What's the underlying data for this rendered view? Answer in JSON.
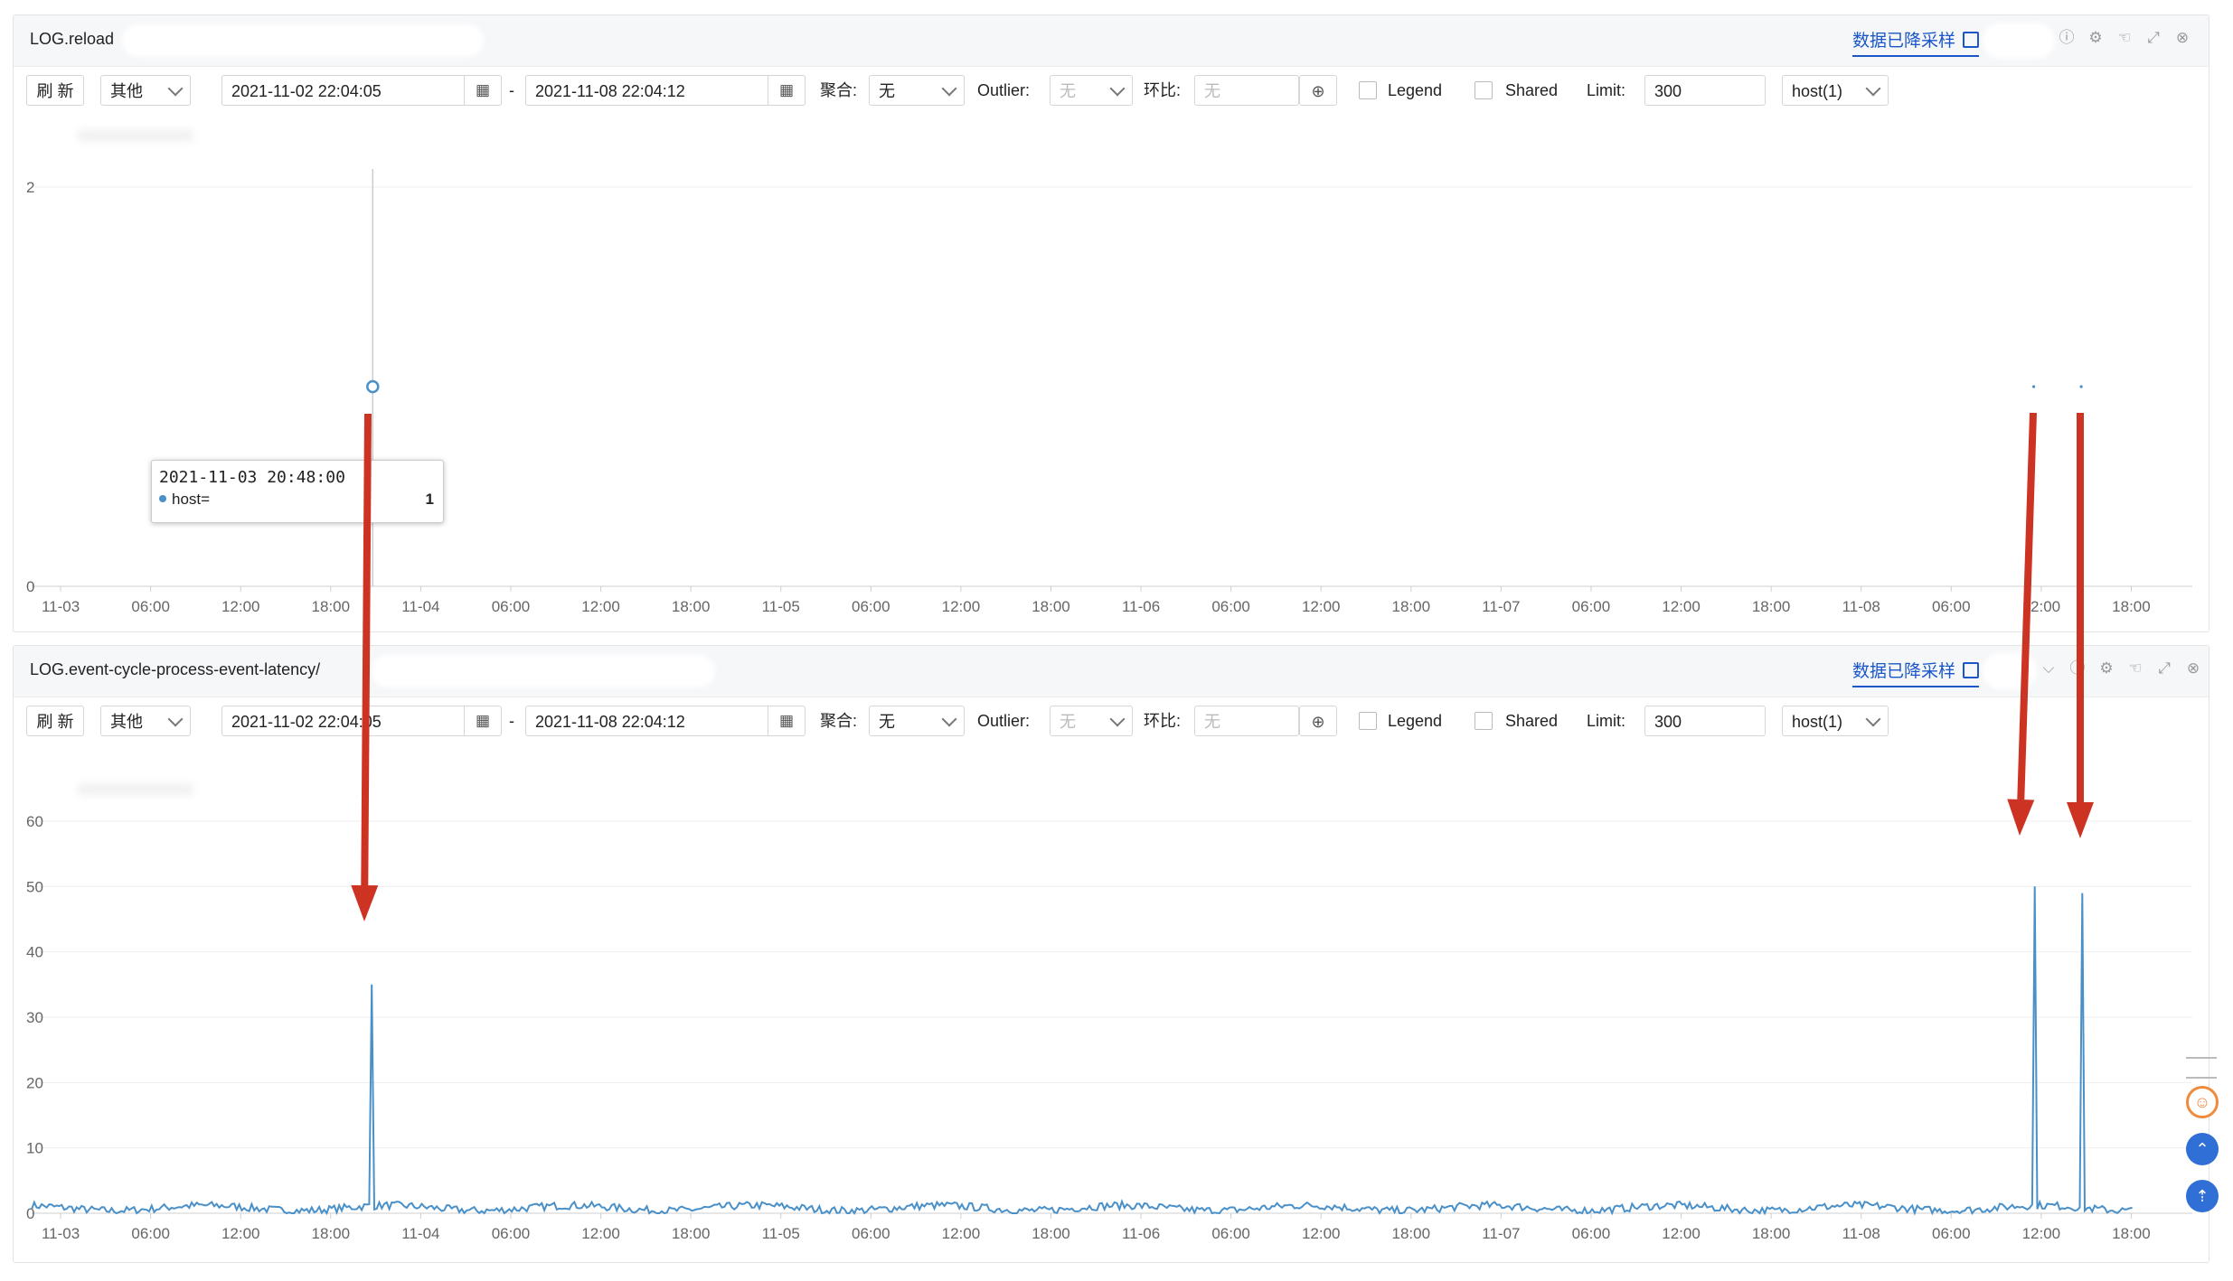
{
  "panels": [
    {
      "title": "LOG.reload",
      "downsample_label": "数据已降采样",
      "toolbar": {
        "refresh": "刷 新",
        "other": "其他",
        "start": "2021-11-02 22:04:05",
        "sep": "-",
        "end": "2021-11-08 22:04:12",
        "agg_label": "聚合:",
        "agg_value": "无",
        "outlier_label": "Outlier:",
        "outlier_value": "无",
        "compare_label": "环比:",
        "compare_placeholder": "无",
        "legend": "Legend",
        "shared": "Shared",
        "limit_label": "Limit:",
        "limit_value": "300",
        "host": "host(1)"
      },
      "tooltip": {
        "time": "2021-11-03 20:48:00",
        "series": "host=",
        "value": "1"
      }
    },
    {
      "title": "LOG.event-cycle-process-event-latency/",
      "downsample_label": "数据已降采样",
      "toolbar": {
        "refresh": "刷 新",
        "other": "其他",
        "start": "2021-11-02 22:04:05",
        "sep": "-",
        "end": "2021-11-08 22:04:12",
        "agg_label": "聚合:",
        "agg_value": "无",
        "outlier_label": "Outlier:",
        "outlier_value": "无",
        "compare_label": "环比:",
        "compare_placeholder": "无",
        "legend": "Legend",
        "shared": "Shared",
        "limit_label": "Limit:",
        "limit_value": "300",
        "host": "host(1)"
      }
    }
  ],
  "colors": {
    "series": "#4a90c8",
    "arrow": "#cc3322",
    "link": "#1a56c8"
  },
  "chart_data": [
    {
      "type": "line",
      "x_ticks": [
        "11-03",
        "06:00",
        "12:00",
        "18:00",
        "11-04",
        "06:00",
        "12:00",
        "18:00",
        "11-05",
        "06:00",
        "12:00",
        "18:00",
        "11-06",
        "06:00",
        "12:00",
        "18:00",
        "11-07",
        "06:00",
        "12:00",
        "18:00",
        "11-08",
        "06:00",
        "12:00",
        "18:00"
      ],
      "y_ticks": [
        "0",
        "2"
      ],
      "ylim": [
        0,
        2
      ],
      "series": [
        {
          "name": "host=",
          "points": [
            [
              "2021-11-03 20:48",
              1
            ],
            [
              "2021-11-08 11:30",
              1
            ],
            [
              "2021-11-08 14:40",
              1
            ]
          ]
        }
      ]
    },
    {
      "type": "line",
      "x_ticks": [
        "11-03",
        "06:00",
        "12:00",
        "18:00",
        "11-04",
        "06:00",
        "12:00",
        "18:00",
        "11-05",
        "06:00",
        "12:00",
        "18:00",
        "11-06",
        "06:00",
        "12:00",
        "18:00",
        "11-07",
        "06:00",
        "12:00",
        "18:00",
        "11-08",
        "06:00",
        "12:00",
        "18:00"
      ],
      "y_ticks": [
        "0",
        "10",
        "20",
        "30",
        "40",
        "50",
        "60"
      ],
      "ylim": [
        0,
        60
      ],
      "series": [
        {
          "name": "host=",
          "baseline": 0.8,
          "spikes": [
            [
              "2021-11-03 20:48",
              35
            ],
            [
              "2021-11-08 11:30",
              50
            ],
            [
              "2021-11-08 14:40",
              49
            ]
          ]
        }
      ]
    }
  ]
}
